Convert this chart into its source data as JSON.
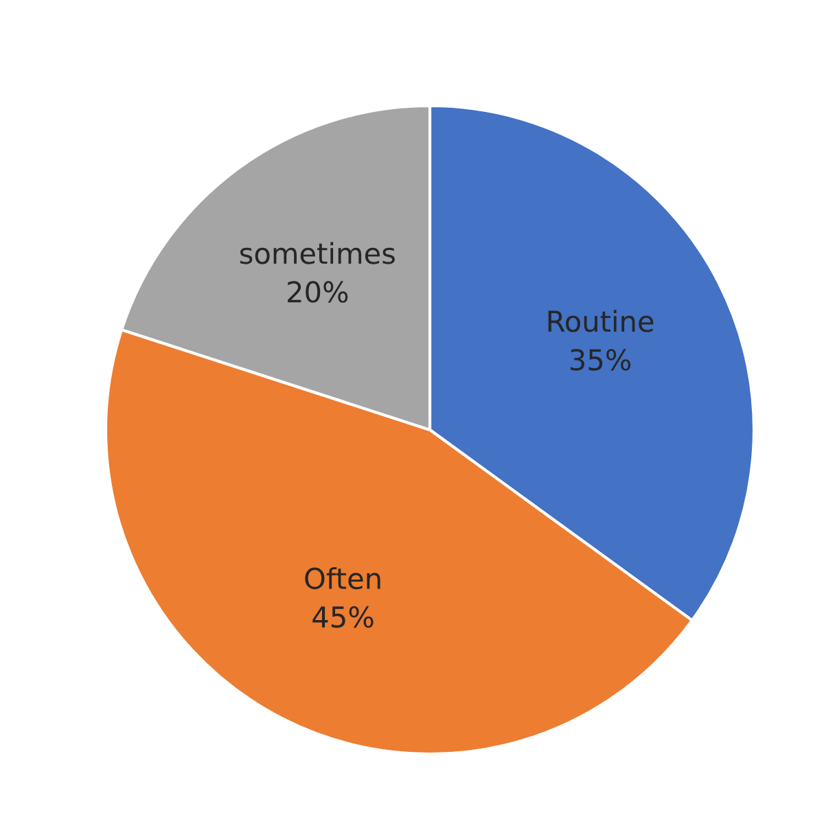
{
  "chart_data": {
    "type": "pie",
    "categories": [
      "Routine",
      "Often",
      "sometimes"
    ],
    "values": [
      35,
      45,
      20
    ],
    "colors": [
      "#4472c4",
      "#ed7d31",
      "#a5a5a5"
    ],
    "value_labels": [
      "35%",
      "45%",
      "20%"
    ]
  }
}
